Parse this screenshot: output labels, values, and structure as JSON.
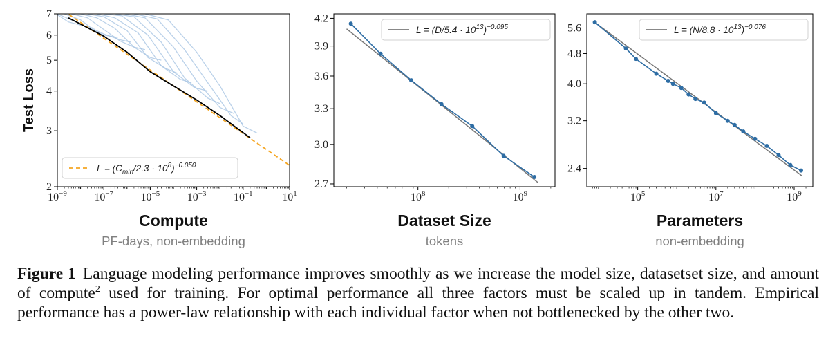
{
  "figure_label": "Figure 1",
  "caption": {
    "part1": "Language modeling performance improves smoothly as we increase the model size, datasetset size, and amount of compute",
    "footnote_mark": "2",
    "part2": "used for training. For optimal performance all three factors must be scaled up in tandem. Empirical performance has a power-law relationship with each individual factor when not bottlenecked by the other two."
  },
  "colors": {
    "data_line": "#2e6da4",
    "curve_light": "#a9c6e3",
    "frontier": "#000000",
    "fit_dashed": "#f5a623",
    "fit_gray": "#777777",
    "subtitle": "#808080"
  },
  "chart_data": [
    {
      "type": "line",
      "title": "Compute",
      "subtitle": "PF-days, non-embedding",
      "ylabel": "Test Loss",
      "xscale": "log",
      "yscale": "log",
      "xlim": [
        1e-09,
        10
      ],
      "ylim": [
        2,
        7
      ],
      "xticks": [
        {
          "v": 1e-09,
          "base": "10",
          "exp": "−9"
        },
        {
          "v": 1e-07,
          "base": "10",
          "exp": "−7"
        },
        {
          "v": 1e-05,
          "base": "10",
          "exp": "−5"
        },
        {
          "v": 0.001,
          "base": "10",
          "exp": "−3"
        },
        {
          "v": 0.1,
          "base": "10",
          "exp": "−1"
        },
        {
          "v": 10,
          "base": "10",
          "exp": "1"
        }
      ],
      "yticks": [
        {
          "v": 2,
          "label": "2"
        },
        {
          "v": 3,
          "label": "3"
        },
        {
          "v": 4,
          "label": "4"
        },
        {
          "v": 5,
          "label": "5"
        },
        {
          "v": 6,
          "label": "6"
        },
        {
          "v": 7,
          "label": "7"
        }
      ],
      "legend": {
        "position": "bottom-left",
        "entries": [
          {
            "style": "dashed",
            "text": "L = (C_min/2.3 · 10^8)^−0.050"
          }
        ]
      },
      "fit": {
        "coef": 230000000.0,
        "alpha": 0.05,
        "x_range": [
          1e-09,
          10
        ]
      },
      "frontier": {
        "x": [
          3e-09,
          1e-08,
          1e-07,
          1e-06,
          1e-05,
          0.0001,
          0.001,
          0.01,
          0.2
        ],
        "y": [
          6.8,
          6.5,
          5.95,
          5.3,
          4.6,
          4.15,
          3.75,
          3.35,
          2.85
        ]
      },
      "training_curves": [
        {
          "x": [
            1e-09,
            3e-09,
            1e-08,
            4e-08
          ],
          "y": [
            6.95,
            6.6,
            6.45,
            6.3
          ]
        },
        {
          "x": [
            1e-09,
            1e-08,
            1e-07,
            4e-07
          ],
          "y": [
            7.0,
            6.5,
            6.0,
            5.9
          ]
        },
        {
          "x": [
            2e-09,
            1e-08,
            3e-08,
            1e-07,
            5e-07,
            1.5e-06
          ],
          "y": [
            7.0,
            6.7,
            6.3,
            6.05,
            5.8,
            5.7
          ]
        },
        {
          "x": [
            4e-09,
            2e-08,
            1e-07,
            5e-07,
            2e-06,
            6e-06
          ],
          "y": [
            7.0,
            6.8,
            6.25,
            5.75,
            5.5,
            5.4
          ]
        },
        {
          "x": [
            1e-08,
            5e-08,
            3e-07,
            2e-06,
            1e-05,
            3e-05
          ],
          "y": [
            7.0,
            6.8,
            6.3,
            5.5,
            5.1,
            5.0
          ]
        },
        {
          "x": [
            2e-08,
            1e-07,
            1e-06,
            8e-06,
            5e-05,
            0.00015
          ],
          "y": [
            7.0,
            6.85,
            6.2,
            5.1,
            4.7,
            4.55
          ]
        },
        {
          "x": [
            5e-08,
            3e-07,
            3e-06,
            3e-05,
            0.0002,
            0.0006
          ],
          "y": [
            7.0,
            6.8,
            6.1,
            4.8,
            4.35,
            4.25
          ]
        },
        {
          "x": [
            1e-07,
            6e-07,
            8e-06,
            0.0001,
            0.0008,
            0.003
          ],
          "y": [
            7.0,
            6.9,
            6.0,
            4.6,
            4.1,
            4.0
          ]
        },
        {
          "x": [
            3e-07,
            2e-06,
            3e-05,
            0.0003,
            0.003,
            0.01
          ],
          "y": [
            7.0,
            6.85,
            5.7,
            4.4,
            3.8,
            3.65
          ]
        },
        {
          "x": [
            8e-07,
            6e-06,
            0.0001,
            0.001,
            0.01,
            0.04
          ],
          "y": [
            7.0,
            6.8,
            5.5,
            4.3,
            3.55,
            3.4
          ]
        },
        {
          "x": [
            2e-06,
            2e-05,
            0.0003,
            0.003,
            0.03,
            0.1
          ],
          "y": [
            7.0,
            6.75,
            5.4,
            4.25,
            3.35,
            3.15
          ]
        },
        {
          "x": [
            6e-06,
            6e-05,
            0.001,
            0.01,
            0.1,
            0.4
          ],
          "y": [
            7.0,
            6.7,
            5.3,
            4.15,
            3.1,
            2.95
          ]
        }
      ]
    },
    {
      "type": "line",
      "title": "Dataset Size",
      "subtitle": "tokens",
      "xscale": "log",
      "yscale": "log",
      "xlim": [
        15000000.0,
        2200000000.0
      ],
      "ylim": [
        2.68,
        4.25
      ],
      "xticks": [
        {
          "v": 100000000.0,
          "base": "10",
          "exp": "8"
        },
        {
          "v": 1000000000.0,
          "base": "10",
          "exp": "9"
        }
      ],
      "yticks": [
        {
          "v": 2.7,
          "label": "2.7"
        },
        {
          "v": 3.0,
          "label": "3.0"
        },
        {
          "v": 3.3,
          "label": "3.3"
        },
        {
          "v": 3.6,
          "label": "3.6"
        },
        {
          "v": 3.9,
          "label": "3.9"
        },
        {
          "v": 4.2,
          "label": "4.2"
        }
      ],
      "legend": {
        "position": "top-right",
        "entries": [
          {
            "style": "solid",
            "text": "L = (D/5.4 · 10^13)^−0.095"
          }
        ]
      },
      "fit": {
        "coef": 54000000000000.0,
        "alpha": 0.095,
        "x_range": [
          20000000.0,
          1500000000.0
        ]
      },
      "x": [
        22000000.0,
        43000000.0,
        86000000.0,
        170000000.0,
        340000000.0,
        690000000.0,
        1380000000.0
      ],
      "y": [
        4.14,
        3.82,
        3.56,
        3.34,
        3.15,
        2.91,
        2.75
      ]
    },
    {
      "type": "line",
      "title": "Parameters",
      "subtitle": "non-embedding",
      "xscale": "log",
      "yscale": "log",
      "xlim": [
        5000.0,
        3000000000.0
      ],
      "ylim": [
        2.15,
        6.1
      ],
      "xticks": [
        {
          "v": 100000.0,
          "base": "10",
          "exp": "5"
        },
        {
          "v": 10000000.0,
          "base": "10",
          "exp": "7"
        },
        {
          "v": 1000000000.0,
          "base": "10",
          "exp": "9"
        }
      ],
      "yticks": [
        {
          "v": 2.4,
          "label": "2.4"
        },
        {
          "v": 3.2,
          "label": "3.2"
        },
        {
          "v": 4.0,
          "label": "4.0"
        },
        {
          "v": 4.8,
          "label": "4.8"
        },
        {
          "v": 5.6,
          "label": "5.6"
        }
      ],
      "legend": {
        "position": "top-right",
        "entries": [
          {
            "style": "solid",
            "text": "L = (N/8.8 · 10^13)^−0.076"
          }
        ]
      },
      "fit": {
        "coef": 88000000000000.0,
        "alpha": 0.076,
        "x_range": [
          8000.0,
          1600000000.0
        ]
      },
      "x": [
        8000.0,
        50000.0,
        90000.0,
        300000.0,
        600000.0,
        800000.0,
        1300000.0,
        2000000.0,
        3000000.0,
        5000000.0,
        10000000.0,
        20000000.0,
        30000000.0,
        50000000.0,
        100000000.0,
        200000000.0,
        400000000.0,
        800000000.0,
        1500000000.0
      ],
      "y": [
        5.8,
        4.95,
        4.65,
        4.25,
        4.07,
        4.0,
        3.9,
        3.75,
        3.65,
        3.57,
        3.35,
        3.2,
        3.12,
        3.0,
        2.87,
        2.75,
        2.6,
        2.45,
        2.37
      ]
    }
  ]
}
